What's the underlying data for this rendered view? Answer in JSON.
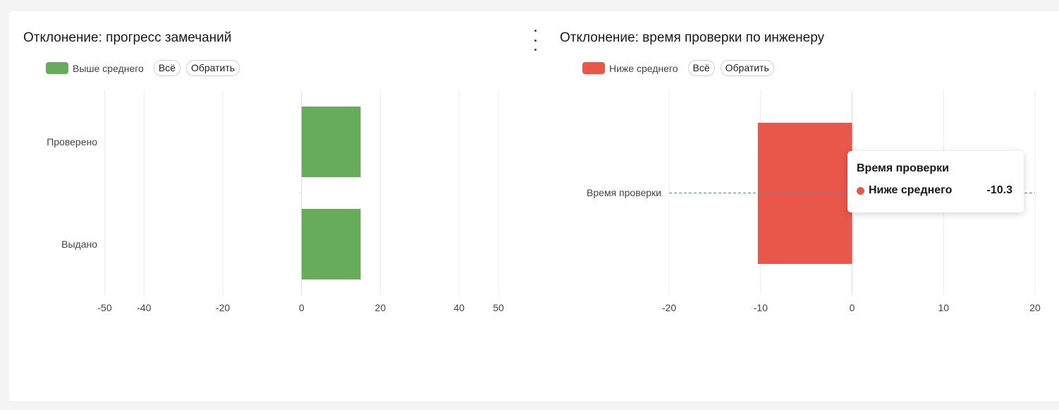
{
  "left_panel": {
    "title": "Отклонение: прогресс замечаний",
    "legend": {
      "label": "Выше среднего",
      "color": "#67ac5b"
    },
    "all_button": "Всё",
    "invert_button": "Обратить"
  },
  "right_panel": {
    "title": "Отклонение: время проверки по инженеру",
    "legend": {
      "label": "Ниже среднего",
      "color": "#e8574a"
    },
    "all_button": "Всё",
    "invert_button": "Обратить"
  },
  "tooltip": {
    "title": "Время проверки",
    "series": "Ниже среднего",
    "value": "-10.3"
  },
  "chart_data": [
    {
      "type": "bar",
      "orientation": "horizontal",
      "title": "Отклонение: прогресс замечаний",
      "categories": [
        "Проверено",
        "Выдано"
      ],
      "series": [
        {
          "name": "Выше среднего",
          "values": [
            15,
            15
          ],
          "color": "#67ac5b"
        }
      ],
      "xlim": [
        -50,
        50
      ],
      "xticks": [
        "-50",
        "-40",
        "-20",
        "0",
        "20",
        "40",
        "50"
      ],
      "xtick_values": [
        -50,
        -40,
        -20,
        0,
        20,
        40,
        50
      ],
      "grid": true
    },
    {
      "type": "bar",
      "orientation": "horizontal",
      "title": "Отклонение: время проверки по инженеру",
      "categories": [
        "Время проверки"
      ],
      "series": [
        {
          "name": "Ниже среднего",
          "values": [
            -10.3
          ],
          "color": "#e8574a"
        }
      ],
      "xlim": [
        -20,
        20
      ],
      "xticks": [
        "-20",
        "-10",
        "0",
        "10",
        "20"
      ],
      "xtick_values": [
        -20,
        -10,
        0,
        10,
        20
      ],
      "grid": true
    }
  ]
}
